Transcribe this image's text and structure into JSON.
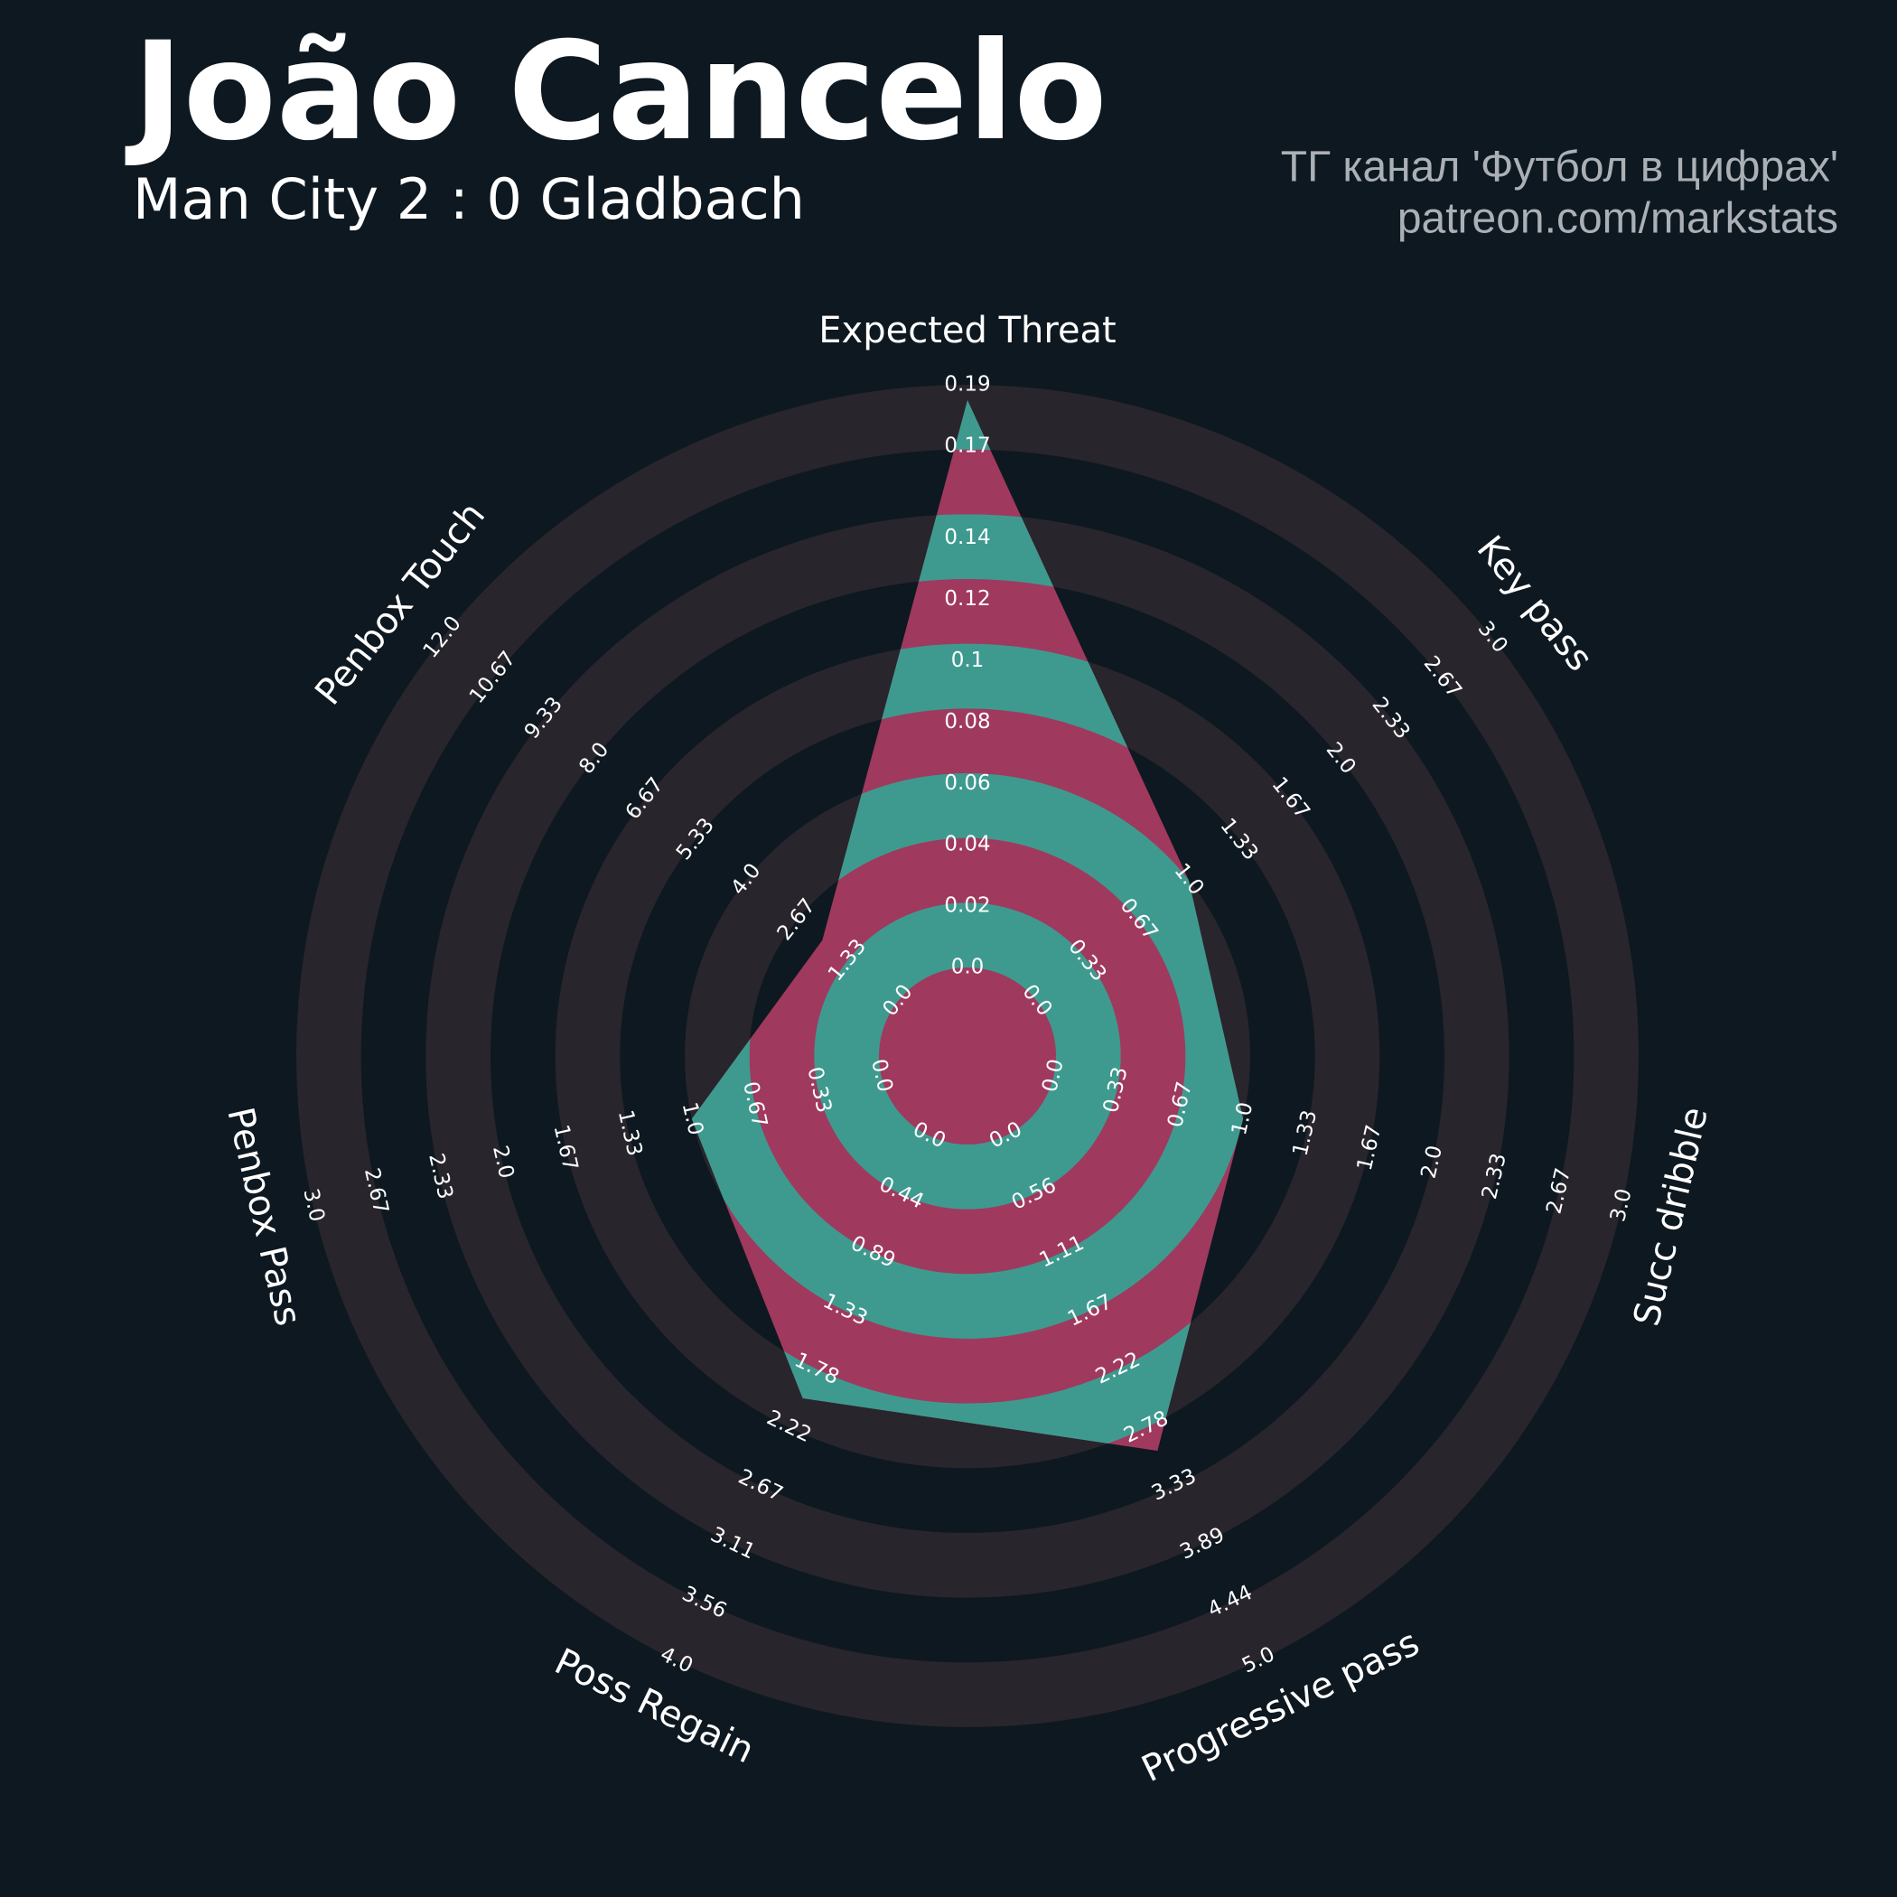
{
  "chart_data": {
    "type": "radar",
    "title": "João Cancelo",
    "subtitle": "Man City 2 : 0 Gladbach",
    "credits": [
      "ТГ канал 'Футбол в цифрах'",
      "patreon.com/markstats"
    ],
    "categories": [
      "Expected Threat",
      "Key pass",
      "Succ dribble",
      "Progressive pass",
      "Poss Regain",
      "Penbox Pass",
      "Penbox Touch"
    ],
    "values": [
      0.185,
      1,
      1,
      3,
      2,
      1,
      2
    ],
    "ranges": [
      [
        0,
        0.19
      ],
      [
        0,
        3
      ],
      [
        0,
        3
      ],
      [
        0,
        5
      ],
      [
        0,
        4
      ],
      [
        0,
        3
      ],
      [
        0,
        12
      ]
    ],
    "ticks": [
      [
        {
          "value": 0,
          "label": "0.0"
        },
        0.02,
        0.04,
        0.06,
        0.08,
        0.1,
        0.12,
        0.14,
        0.17,
        0.19
      ],
      [
        {
          "value": 0,
          "label": "0.0"
        },
        0.33,
        0.67,
        {
          "value": 1,
          "label": "1.0"
        },
        1.33,
        1.67,
        {
          "value": 2,
          "label": "2.0"
        },
        2.33,
        2.67,
        {
          "value": 3,
          "label": "3.0"
        }
      ],
      [
        {
          "value": 0,
          "label": "0.0"
        },
        0.33,
        0.67,
        {
          "value": 1,
          "label": "1.0"
        },
        1.33,
        1.67,
        {
          "value": 2,
          "label": "2.0"
        },
        2.33,
        2.67,
        {
          "value": 3,
          "label": "3.0"
        }
      ],
      [
        {
          "value": 0,
          "label": "0.0"
        },
        0.56,
        1.11,
        1.67,
        2.22,
        2.78,
        3.33,
        3.89,
        4.44,
        {
          "value": 5,
          "label": "5.0"
        }
      ],
      [
        {
          "value": 0,
          "label": "0.0"
        },
        0.44,
        0.89,
        1.33,
        1.78,
        2.22,
        2.67,
        3.11,
        3.56,
        {
          "value": 4,
          "label": "4.0"
        }
      ],
      [
        {
          "value": 0,
          "label": "0.0"
        },
        0.33,
        0.67,
        {
          "value": 1,
          "label": "1.0"
        },
        1.33,
        1.67,
        {
          "value": 2,
          "label": "2.0"
        },
        2.33,
        2.67,
        {
          "value": 3,
          "label": "3.0"
        }
      ],
      [
        {
          "value": 0,
          "label": "0.0"
        },
        1.33,
        2.67,
        {
          "value": 4,
          "label": "4.0"
        },
        5.33,
        6.67,
        {
          "value": 8,
          "label": "8.0"
        },
        9.33,
        10.67,
        {
          "value": 12,
          "label": "12.0"
        }
      ]
    ],
    "color": "#3e9a8f",
    "alt_color": "#a0395e",
    "ring_color": "#28252c",
    "background": "#0e1820"
  }
}
